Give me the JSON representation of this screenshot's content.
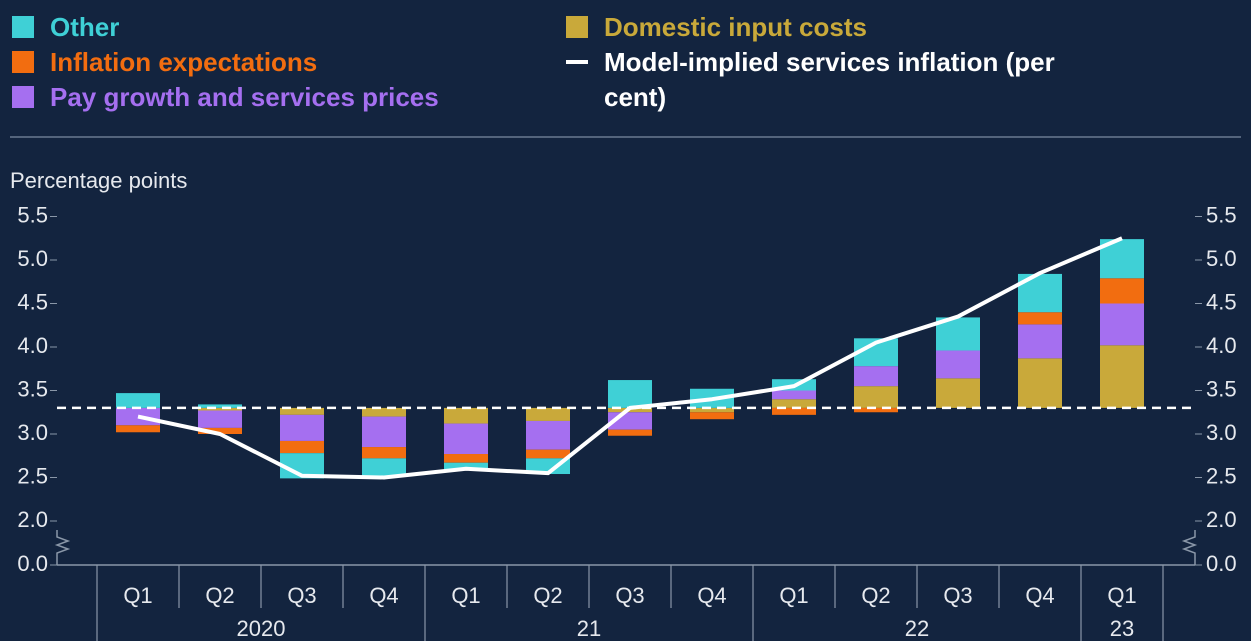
{
  "chart_data": {
    "type": "stacked-deviation-bar",
    "y_label": "Percentage points",
    "categories": [
      "Q1",
      "Q2",
      "Q3",
      "Q4",
      "Q1",
      "Q2",
      "Q3",
      "Q4",
      "Q1",
      "Q2",
      "Q3",
      "Q4",
      "Q1"
    ],
    "years": [
      "2020",
      null,
      null,
      null,
      "21",
      null,
      null,
      null,
      "22",
      null,
      null,
      null,
      "23"
    ],
    "reference_line": 3.3,
    "series": [
      {
        "name": "Domestic input costs",
        "color": "#c9a93a",
        "values": [
          0,
          -0.03,
          -0.08,
          -0.1,
          -0.18,
          -0.15,
          -0.05,
          -0.05,
          0.1,
          0.25,
          0.34,
          0.57,
          0.72
        ]
      },
      {
        "name": "Pay growth and services prices",
        "color": "#a56ff0",
        "values": [
          -0.2,
          -0.2,
          -0.3,
          -0.35,
          -0.35,
          -0.33,
          -0.2,
          0,
          0.1,
          0.23,
          0.32,
          0.39,
          0.48
        ]
      },
      {
        "name": "Inflation expectations",
        "color": "#f26d10",
        "values": [
          -0.08,
          -0.07,
          -0.14,
          -0.13,
          -0.1,
          -0.1,
          -0.07,
          -0.08,
          -0.08,
          -0.05,
          0,
          0.14,
          0.29
        ]
      },
      {
        "name": "Other",
        "color": "#3fd0d6",
        "values": [
          0.17,
          0.04,
          -0.29,
          -0.2,
          -0.08,
          -0.18,
          0.32,
          0.22,
          0.13,
          0.32,
          0.38,
          0.44,
          0.45
        ]
      }
    ],
    "line": {
      "name": "Model-implied services inflation (per cent)",
      "color": "#ffffff",
      "values": [
        3.2,
        3.0,
        2.52,
        2.5,
        2.6,
        2.55,
        3.3,
        3.4,
        3.55,
        4.05,
        4.35,
        4.85,
        5.25
      ]
    },
    "ylim": [
      0,
      5.5
    ],
    "y_break": [
      0,
      2
    ],
    "yticks": [
      {
        "value": 0,
        "label": "0.0"
      },
      {
        "value": 2,
        "label": "2.0"
      },
      2.5,
      {
        "value": 3,
        "label": "3.0"
      },
      3.5,
      {
        "value": 4,
        "label": "4.0"
      },
      4.5,
      {
        "value": 5,
        "label": "5.0"
      },
      5.5
    ]
  }
}
